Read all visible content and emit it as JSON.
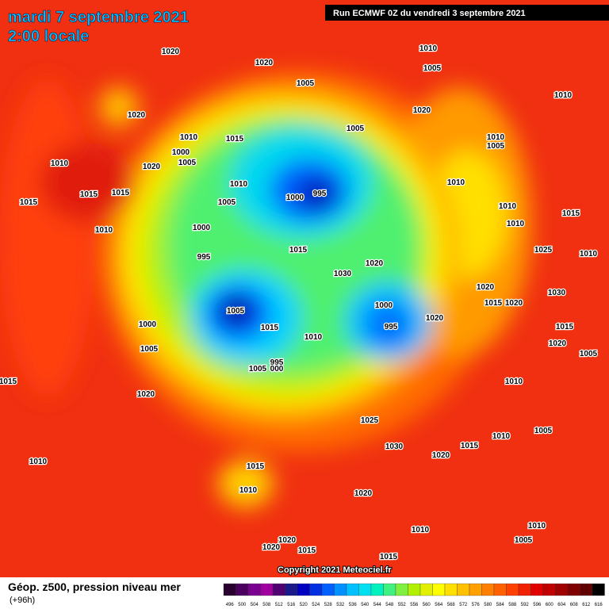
{
  "header": {
    "title": "mardi 7 septembre 2021",
    "time": "2:00 locale",
    "run": "Run ECMWF 0Z du vendredi 3 septembre 2021"
  },
  "footer": {
    "product": "Géop. z500, pression niveau mer",
    "lead": "(+96h)",
    "copyright": "Copyright 2021 Meteociel.fr"
  },
  "scale": {
    "labels": [
      496,
      500,
      504,
      508,
      512,
      516,
      520,
      524,
      528,
      532,
      536,
      540,
      544,
      548,
      552,
      556,
      560,
      564,
      568,
      572,
      576,
      580,
      584,
      588,
      592,
      596,
      600,
      604,
      608,
      612,
      616
    ],
    "colors": [
      "#2a0030",
      "#4b0060",
      "#7a0090",
      "#a000a0",
      "#500070",
      "#1a1a8a",
      "#0000c0",
      "#0030e0",
      "#0060ff",
      "#0090ff",
      "#00c0ff",
      "#00e0f0",
      "#00f0c0",
      "#40f080",
      "#80f040",
      "#b0f000",
      "#e0f000",
      "#ffff00",
      "#ffe000",
      "#ffc000",
      "#ffa000",
      "#ff8000",
      "#ff6000",
      "#ff4000",
      "#f02000",
      "#e00000",
      "#c00000",
      "#a00000",
      "#800000",
      "#600000",
      "#000000"
    ]
  },
  "isobar_labels": [
    "1020",
    "1020",
    "1005",
    "1010",
    "1005",
    "1010",
    "1020",
    "1020",
    "1005",
    "1010",
    "1015",
    "1010",
    "1005",
    "1000",
    "1005",
    "1010",
    "1020",
    "1010",
    "995",
    "1000",
    "1010",
    "1015",
    "1015",
    "1015",
    "1005",
    "1010",
    "1015",
    "1000",
    "1010",
    "1010",
    "1025",
    "1010",
    "1015",
    "995",
    "1020",
    "1030",
    "1005",
    "1000",
    "995",
    "1020",
    "1015",
    "1020",
    "1020",
    "1030",
    "1000",
    "1010",
    "1015",
    "1005",
    "995",
    "1005",
    "000",
    "1015",
    "1020",
    "1025",
    "1030",
    "1020",
    "1015",
    "1010",
    "1005",
    "1015",
    "1010",
    "1020",
    "1010",
    "1010",
    "1005",
    "1015",
    "1020",
    "1020",
    "1015",
    "1010",
    "1015",
    "1020",
    "1005",
    "1010"
  ]
}
